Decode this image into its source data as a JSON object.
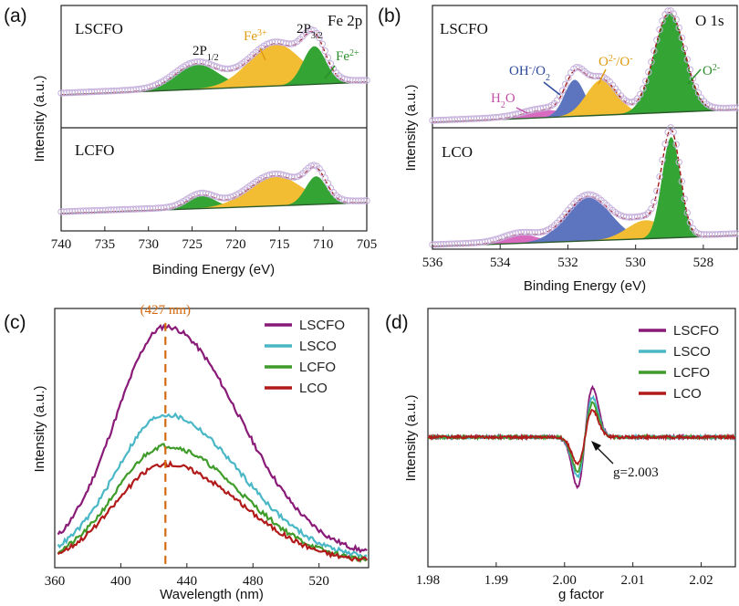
{
  "panels": {
    "a": {
      "label": "(a)",
      "xlabel": "Binding Energy (eV)",
      "ylabel": "Intensity (a.u.)",
      "title_right": "Fe 2p",
      "samples": [
        "LSCFO",
        "LCFO"
      ],
      "annotations": {
        "p12": "2P",
        "p12_sub": "1/2",
        "p32": "2P",
        "p32_sub": "3/2",
        "fe3": "Fe",
        "fe3_sup": "3+",
        "fe2": "Fe",
        "fe2_sup": "2+"
      }
    },
    "b": {
      "label": "(b)",
      "xlabel": "Binding Energy (eV)",
      "ylabel": "Intensity (a.u.)",
      "title_right": "O 1s",
      "samples": [
        "LSCFO",
        "LCO"
      ],
      "annotations": {
        "h2o": "H",
        "h2o_sub": "2",
        "h2o_end": "O",
        "oh": "OH",
        "oh_sup": "-",
        "oh_end": "/O",
        "oh_sub": "2",
        "o2": "O",
        "o2_sup": "2-",
        "o2_end": "/O",
        "o2_sup2": "-",
        "olat": "O",
        "olat_sup": "2-"
      }
    },
    "c": {
      "label": "(c)",
      "xlabel": "Wavelength (nm)",
      "ylabel": "Intensity (a.u.)",
      "peak_label": "(427 nm)"
    },
    "d": {
      "label": "(d)",
      "xlabel": "g factor",
      "ylabel": "Intensity (a.u.)",
      "g_label": "g=2.003"
    }
  },
  "chart_data": [
    {
      "type": "area",
      "panel": "a",
      "xlabel": "Binding Energy (eV)",
      "ylabel": "Intensity (a.u.)",
      "xlim": [
        740,
        705
      ],
      "x_reversed": true,
      "xticks": [
        740,
        735,
        730,
        725,
        720,
        715,
        710,
        705
      ],
      "colors": {
        "fe2p12": "#34a535",
        "fe3": "#f2bd32",
        "fe2p32": "#34a535",
        "raw": "#c6b0dc",
        "fit": "#a01818"
      },
      "subplots": [
        {
          "name": "LSCFO",
          "peaks": [
            {
              "name": "2P1/2",
              "center": 724.5,
              "height": 0.25,
              "width": 2.5
            },
            {
              "name": "Fe3+",
              "center": 715.5,
              "height": 0.42,
              "width": 3.0
            },
            {
              "name": "Fe2+ 2P3/2",
              "center": 711.0,
              "height": 0.38,
              "width": 1.3
            }
          ]
        },
        {
          "name": "LCFO",
          "peaks": [
            {
              "name": "2P1/2",
              "center": 724.0,
              "height": 0.13,
              "width": 1.6
            },
            {
              "name": "Fe3+",
              "center": 715.5,
              "height": 0.3,
              "width": 3.0
            },
            {
              "name": "Fe2+ 2P3/2",
              "center": 710.8,
              "height": 0.28,
              "width": 1.2
            }
          ]
        }
      ]
    },
    {
      "type": "area",
      "panel": "b",
      "xlabel": "Binding Energy (eV)",
      "ylabel": "Intensity (a.u.)",
      "xlim": [
        536,
        527
      ],
      "x_reversed": true,
      "xticks": [
        536,
        534,
        532,
        530,
        528
      ],
      "colors": {
        "h2o": "#d86bc0",
        "oh": "#5d75be",
        "o2": "#f2bd32",
        "olat": "#34a535",
        "raw": "#c6b0dc",
        "fit": "#a01818"
      },
      "subplots": [
        {
          "name": "LSCFO",
          "peaks": [
            {
              "name": "H2O",
              "center": 532.7,
              "height": 0.07,
              "width": 0.6
            },
            {
              "name": "OH-/O2",
              "center": 531.8,
              "height": 0.34,
              "width": 0.3
            },
            {
              "name": "O2 2-/O-",
              "center": 531.0,
              "height": 0.33,
              "width": 0.45
            },
            {
              "name": "O2-",
              "center": 529.0,
              "height": 0.93,
              "width": 0.45
            }
          ]
        },
        {
          "name": "LCO",
          "peaks": [
            {
              "name": "H2O",
              "center": 533.4,
              "height": 0.07,
              "width": 0.5
            },
            {
              "name": "OH-/O2",
              "center": 531.4,
              "height": 0.36,
              "width": 0.65
            },
            {
              "name": "O2 2-/O-",
              "center": 529.7,
              "height": 0.15,
              "width": 0.55
            },
            {
              "name": "O2-",
              "center": 528.95,
              "height": 0.82,
              "width": 0.27
            }
          ]
        }
      ]
    },
    {
      "type": "line",
      "panel": "c",
      "xlabel": "Wavelength (nm)",
      "ylabel": "Intensity (a.u.)",
      "xlim": [
        360,
        550
      ],
      "xticks": [
        360,
        400,
        440,
        480,
        520
      ],
      "ylim": [
        0,
        1
      ],
      "grid": false,
      "legend": "top-right",
      "peak_wavelength": 427,
      "series": [
        {
          "name": "LSCFO",
          "color": "#8a1a78",
          "peak": 0.93,
          "base": 0.04
        },
        {
          "name": "LSCO",
          "color": "#4ab7c6",
          "peak": 0.59,
          "base": 0.03
        },
        {
          "name": "LCFO",
          "color": "#3f9c2a",
          "peak": 0.47,
          "base": 0.02
        },
        {
          "name": "LCO",
          "color": "#b21a1a",
          "peak": 0.4,
          "base": 0.02
        }
      ]
    },
    {
      "type": "line",
      "panel": "d",
      "xlabel": "g factor",
      "ylabel": "Intensity (a.u.)",
      "xlim": [
        1.98,
        2.025
      ],
      "xticks": [
        1.98,
        1.99,
        2.0,
        2.01,
        2.02
      ],
      "ylim": [
        -1,
        1
      ],
      "grid": false,
      "legend": "top-right",
      "g_value": 2.003,
      "series": [
        {
          "name": "LSCFO",
          "color": "#8a1a78",
          "amplitude": 0.85
        },
        {
          "name": "LSCO",
          "color": "#4ab7c6",
          "amplitude": 0.68
        },
        {
          "name": "LCFO",
          "color": "#3f9c2a",
          "amplitude": 0.58
        },
        {
          "name": "LCO",
          "color": "#b21a1a",
          "amplitude": 0.46
        }
      ]
    }
  ]
}
